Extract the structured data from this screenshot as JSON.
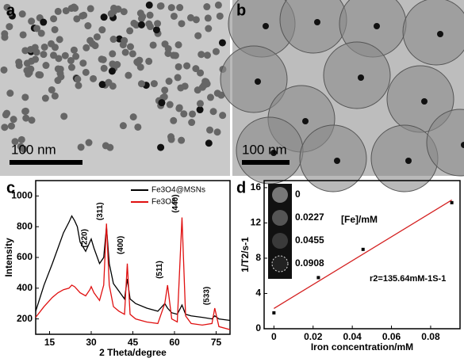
{
  "panels": {
    "labels": [
      "a",
      "b",
      "c",
      "d"
    ],
    "scale_bars": [
      "100  nm",
      "100 nm"
    ]
  },
  "chart_data": [
    {
      "type": "line",
      "x_label": "2 Theta/degree",
      "y_label": "Intensity",
      "x": [
        10,
        13,
        16,
        18,
        20,
        22,
        23,
        24,
        25,
        26,
        28,
        29.5,
        30,
        31,
        33,
        34.5,
        35.5,
        36.5,
        38,
        40,
        42,
        43,
        44,
        46,
        50,
        54,
        56.5,
        57.5,
        59,
        61,
        62.7,
        64,
        66,
        70,
        73.5,
        74.5,
        76,
        80
      ],
      "series": [
        {
          "name": "Fe3O4@MSNs",
          "color": "#000000",
          "values": [
            250,
            420,
            560,
            660,
            760,
            830,
            870,
            840,
            800,
            700,
            640,
            700,
            720,
            660,
            560,
            600,
            800,
            560,
            430,
            380,
            330,
            460,
            330,
            300,
            270,
            250,
            300,
            270,
            240,
            230,
            290,
            230,
            220,
            210,
            200,
            220,
            200,
            190
          ]
        },
        {
          "name": "Fe3O4",
          "color": "#e01010",
          "values": [
            210,
            280,
            340,
            370,
            390,
            400,
            420,
            410,
            390,
            370,
            350,
            390,
            410,
            370,
            320,
            420,
            820,
            420,
            280,
            250,
            230,
            560,
            230,
            200,
            180,
            170,
            300,
            420,
            200,
            180,
            860,
            220,
            170,
            160,
            170,
            270,
            150,
            130
          ]
        }
      ],
      "annotations": [
        "(220)",
        "(311)",
        "(400)",
        "(511)",
        "(440)",
        "(533)"
      ],
      "xlim": [
        10,
        80
      ],
      "xticks": [
        15,
        30,
        45,
        60,
        75
      ],
      "ylim": [
        100,
        1100
      ],
      "yticks": [
        200,
        400,
        600,
        800,
        1000
      ]
    },
    {
      "type": "scatter",
      "x_label": "Iron concentration/mM",
      "y_label": "1/T2/s-1",
      "x": [
        0,
        0.0227,
        0.0455,
        0.0908
      ],
      "values": [
        1.8,
        5.8,
        9.0,
        14.3
      ],
      "color": "#000000",
      "fit": {
        "x": [
          0,
          0.0908
        ],
        "values": [
          2.3,
          14.6
        ],
        "color": "#d42020"
      },
      "inset_title": "[Fe]/mM",
      "inset_labels": [
        "0",
        "0.0227",
        "0.0455",
        "0.0908"
      ],
      "annotation": "r2=135.64mM-1S-1",
      "xlim": [
        -0.005,
        0.095
      ],
      "xticks": [
        0,
        0.02,
        0.04,
        0.06,
        0.08
      ],
      "ylim": [
        0,
        16.8
      ],
      "yticks": [
        0,
        4,
        8,
        12,
        16
      ]
    }
  ]
}
